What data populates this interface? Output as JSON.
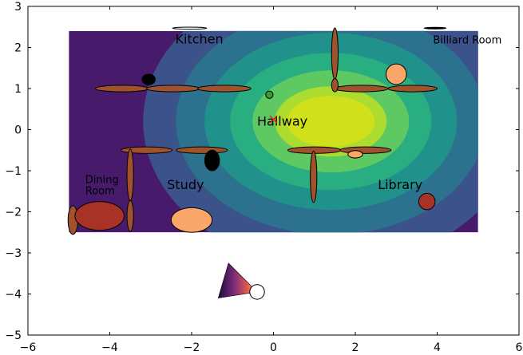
{
  "chart_data": {
    "type": "contour",
    "title": "",
    "xlabel": "",
    "ylabel": "",
    "xlim": [
      -6,
      6
    ],
    "ylim": [
      -5,
      3
    ],
    "xticks": [
      "−6",
      "−4",
      "−2",
      "0",
      "2",
      "4",
      "6"
    ],
    "yticks": [
      "−5",
      "−4",
      "−3",
      "−2",
      "−1",
      "0",
      "1",
      "2",
      "3"
    ],
    "grid": false,
    "heatmap": {
      "extent": {
        "x": [
          -5,
          5
        ],
        "y": [
          -2.5,
          2.4
        ]
      },
      "peak": {
        "x": 1.4,
        "y": 0.2
      },
      "levels_colors": [
        "#481a6c",
        "#3b528b",
        "#2c728e",
        "#21918c",
        "#28ae80",
        "#5ec962",
        "#addc30",
        "#d0e11c"
      ]
    },
    "rooms": [
      {
        "name": "Kitchen",
        "x": -2.4,
        "y": 2.1,
        "size": "large"
      },
      {
        "name": "Billiard Room",
        "x": 3.9,
        "y": 2.1,
        "size": "small"
      },
      {
        "name": "Hallway",
        "x": -0.4,
        "y": 0.1,
        "size": "large"
      },
      {
        "name": "Dining\nRoom",
        "x": -4.6,
        "y": -1.3,
        "size": "small"
      },
      {
        "name": "Study",
        "x": -2.6,
        "y": -1.45,
        "size": "large"
      },
      {
        "name": "Library",
        "x": 2.55,
        "y": -1.45,
        "size": "large"
      }
    ],
    "walls": [
      {
        "x": -3.7,
        "y": 1.0,
        "w": 1.3,
        "h": 0.16
      },
      {
        "x": -2.45,
        "y": 1.0,
        "w": 1.3,
        "h": 0.16
      },
      {
        "x": -1.2,
        "y": 1.0,
        "w": 1.3,
        "h": 0.16
      },
      {
        "x": 2.15,
        "y": 1.0,
        "w": 1.3,
        "h": 0.16
      },
      {
        "x": 3.4,
        "y": 1.0,
        "w": 1.2,
        "h": 0.16
      },
      {
        "x": 1.5,
        "y": 1.85,
        "w": 0.16,
        "h": 1.25
      },
      {
        "x": 1.5,
        "y": 1.08,
        "w": 0.16,
        "h": 0.32
      },
      {
        "x": -3.1,
        "y": -0.5,
        "w": 1.25,
        "h": 0.16
      },
      {
        "x": -1.75,
        "y": -0.5,
        "w": 1.25,
        "h": 0.16
      },
      {
        "x": -3.5,
        "y": -1.1,
        "w": 0.16,
        "h": 1.25
      },
      {
        "x": -3.5,
        "y": -2.1,
        "w": 0.16,
        "h": 0.75
      },
      {
        "x": -4.9,
        "y": -2.2,
        "w": 0.24,
        "h": 0.7
      },
      {
        "x": 1.0,
        "y": -0.5,
        "w": 1.3,
        "h": 0.16
      },
      {
        "x": 2.25,
        "y": -0.5,
        "w": 1.25,
        "h": 0.16
      },
      {
        "x": 0.98,
        "y": -1.15,
        "w": 0.16,
        "h": 1.25
      }
    ],
    "furniture": [
      {
        "x": -2.05,
        "y": 2.47,
        "rx": 0.42,
        "ry": 0.025,
        "color": "#ffffff"
      },
      {
        "x": 3.95,
        "y": 2.47,
        "rx": 0.27,
        "ry": 0.02,
        "color": "#000000"
      },
      {
        "x": -3.05,
        "y": 1.22,
        "rx": 0.16,
        "ry": 0.13,
        "color": "#000000"
      },
      {
        "x": 3.0,
        "y": 1.35,
        "rx": 0.25,
        "ry": 0.25,
        "color": "#fca76a"
      },
      {
        "x": -0.1,
        "y": 0.85,
        "rx": 0.09,
        "ry": 0.09,
        "color": "#3a9a3a"
      },
      {
        "x": -1.5,
        "y": -0.75,
        "rx": 0.18,
        "ry": 0.25,
        "color": "#000000"
      },
      {
        "x": 2.0,
        "y": -0.6,
        "rx": 0.18,
        "ry": 0.09,
        "color": "#fca76a"
      },
      {
        "x": -4.25,
        "y": -2.1,
        "rx": 0.6,
        "ry": 0.35,
        "color": "#a93226"
      },
      {
        "x": -2.0,
        "y": -2.2,
        "rx": 0.5,
        "ry": 0.3,
        "color": "#fca76a"
      },
      {
        "x": 3.75,
        "y": -1.75,
        "rx": 0.2,
        "ry": 0.2,
        "color": "#a93226"
      }
    ],
    "marker": {
      "x": 0.0,
      "y": 0.25,
      "symbol": "x",
      "color": "#e41a1c"
    },
    "robot": {
      "x": -0.4,
      "y": -3.95,
      "r": 0.18,
      "fov_apex": [
        -1.1,
        -3.25
      ],
      "fov_end": [
        -1.35,
        -4.1
      ]
    }
  }
}
